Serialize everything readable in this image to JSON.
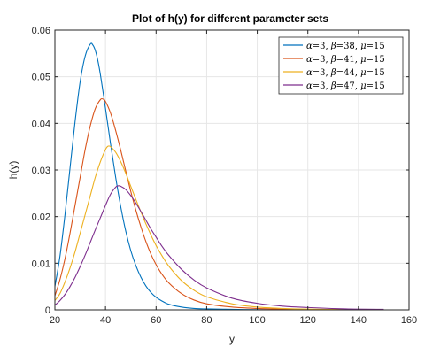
{
  "chart_data": {
    "type": "line",
    "title": "Plot of h(y) for different parameter sets",
    "xlabel": "y",
    "ylabel": "h(y)",
    "xlim": [
      20,
      160
    ],
    "ylim": [
      0,
      0.06
    ],
    "xticks": [
      "20",
      "40",
      "60",
      "80",
      "100",
      "120",
      "140",
      "160"
    ],
    "yticks": [
      "0",
      "0.01",
      "0.02",
      "0.03",
      "0.04",
      "0.05",
      "0.06"
    ],
    "grid": true,
    "legend_position": "top-right",
    "series": [
      {
        "name": "α=3, β=38, μ=15",
        "alpha": "3",
        "beta": "38",
        "mu": "15",
        "color": "#0072BD",
        "x": [
          20,
          22,
          24,
          26,
          28,
          30,
          32,
          34,
          35,
          36,
          37,
          38,
          40,
          42,
          44,
          46,
          48,
          50,
          52,
          54,
          56,
          58,
          60,
          62,
          65,
          70,
          75,
          80,
          90,
          100,
          110,
          120,
          135,
          150
        ],
        "y": [
          0.005,
          0.0115,
          0.0205,
          0.0305,
          0.0405,
          0.049,
          0.0545,
          0.057,
          0.0568,
          0.0556,
          0.0534,
          0.0504,
          0.0432,
          0.0356,
          0.0285,
          0.0222,
          0.0169,
          0.0127,
          0.0095,
          0.007,
          0.0051,
          0.0037,
          0.0027,
          0.002,
          0.0012,
          0.0006,
          0.0003,
          0.0002,
          0.0001,
          5e-05,
          2e-05,
          1e-05,
          0.0,
          0.0
        ]
      },
      {
        "name": "α=3, β=41, μ=15",
        "alpha": "3",
        "beta": "41",
        "mu": "15",
        "color": "#D95319",
        "x": [
          20,
          22,
          24,
          26,
          28,
          30,
          32,
          34,
          36,
          38,
          39,
          40,
          42,
          44,
          46,
          48,
          50,
          52,
          54,
          56,
          58,
          60,
          62,
          65,
          70,
          75,
          80,
          90,
          100,
          110,
          120,
          135,
          150
        ],
        "y": [
          0.003,
          0.0065,
          0.011,
          0.0165,
          0.0225,
          0.0285,
          0.0345,
          0.0395,
          0.0432,
          0.0451,
          0.0452,
          0.0447,
          0.0422,
          0.0385,
          0.0343,
          0.0298,
          0.0254,
          0.0214,
          0.0178,
          0.0146,
          0.0119,
          0.0097,
          0.0079,
          0.0058,
          0.0035,
          0.0021,
          0.0013,
          0.0006,
          0.0003,
          0.00015,
          8e-05,
          3e-05,
          1e-05
        ]
      },
      {
        "name": "α=3, β=44, μ=15",
        "alpha": "3",
        "beta": "44",
        "mu": "15",
        "color": "#EDB120",
        "x": [
          20,
          22,
          24,
          26,
          28,
          30,
          32,
          34,
          36,
          38,
          40,
          41,
          42,
          44,
          46,
          48,
          50,
          52,
          54,
          56,
          58,
          60,
          62,
          65,
          70,
          75,
          80,
          90,
          100,
          110,
          120,
          135,
          150
        ],
        "y": [
          0.002,
          0.0035,
          0.006,
          0.009,
          0.0125,
          0.0165,
          0.0205,
          0.0245,
          0.0285,
          0.0318,
          0.0344,
          0.0351,
          0.035,
          0.0338,
          0.0318,
          0.0293,
          0.0265,
          0.0237,
          0.021,
          0.0184,
          0.016,
          0.0138,
          0.0119,
          0.0094,
          0.0063,
          0.0042,
          0.0028,
          0.0013,
          0.0006,
          0.0003,
          0.00015,
          6e-05,
          2e-05
        ]
      },
      {
        "name": "α=3, β=47, μ=15",
        "alpha": "3",
        "beta": "47",
        "mu": "15",
        "color": "#7E2F8E",
        "x": [
          20,
          22,
          24,
          26,
          28,
          30,
          32,
          34,
          36,
          38,
          40,
          42,
          44,
          45,
          46,
          48,
          50,
          52,
          54,
          56,
          58,
          60,
          62,
          65,
          70,
          75,
          80,
          90,
          100,
          110,
          120,
          135,
          150
        ],
        "y": [
          0.001,
          0.002,
          0.0033,
          0.005,
          0.007,
          0.0093,
          0.0118,
          0.0145,
          0.0172,
          0.0198,
          0.0224,
          0.0248,
          0.0263,
          0.0266,
          0.0265,
          0.0258,
          0.0245,
          0.0229,
          0.0211,
          0.0192,
          0.0173,
          0.0156,
          0.0139,
          0.0117,
          0.0087,
          0.0064,
          0.0047,
          0.0025,
          0.0014,
          0.0008,
          0.0005,
          0.0002,
          0.0001
        ]
      }
    ]
  }
}
